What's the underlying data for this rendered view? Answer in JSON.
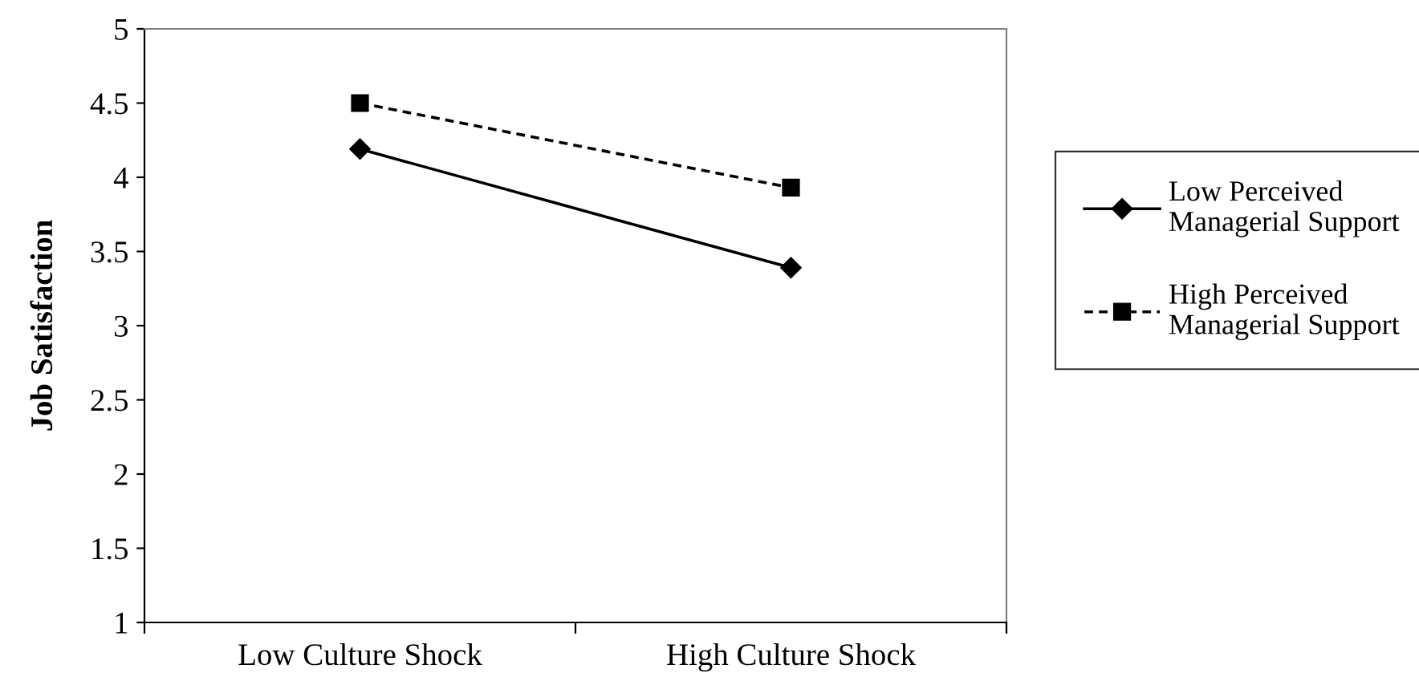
{
  "chart_data": {
    "type": "line",
    "ylabel": "Job Satisfaction",
    "categories": [
      "Low Culture Shock",
      "High Culture Shock"
    ],
    "series": [
      {
        "name": "Low Perceived\nManagerial Support",
        "color": "#000000",
        "values": [
          4.19,
          3.39
        ],
        "marker": "diamond",
        "line_style": "solid"
      },
      {
        "name": "High Perceived\nManagerial Support",
        "color": "#000000",
        "values": [
          4.5,
          3.93
        ],
        "marker": "square",
        "line_style": "dashed"
      }
    ],
    "ylim": [
      1,
      5
    ],
    "yticks": [
      1,
      1.5,
      2,
      2.5,
      3,
      3.5,
      4,
      4.5,
      5
    ],
    "grid": false,
    "legend": "right"
  }
}
